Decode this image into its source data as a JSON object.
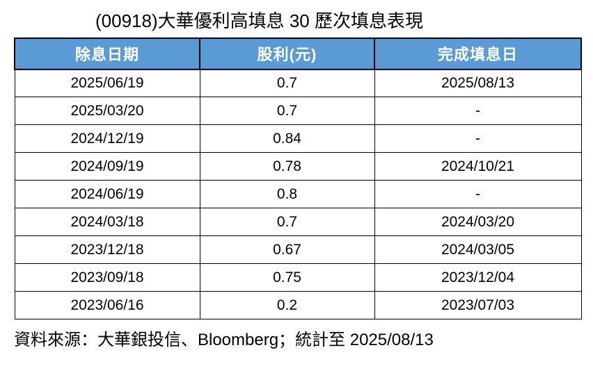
{
  "chart_data": {
    "type": "table",
    "title": "(00918)大華優利高填息 30 歷次填息表現",
    "columns": [
      "除息日期",
      "股利(元)",
      "完成填息日"
    ],
    "rows": [
      [
        "2025/06/19",
        "0.7",
        "2025/08/13"
      ],
      [
        "2025/03/20",
        "0.7",
        "-"
      ],
      [
        "2024/12/19",
        "0.84",
        "-"
      ],
      [
        "2024/09/19",
        "0.78",
        "2024/10/21"
      ],
      [
        "2024/06/19",
        "0.8",
        "-"
      ],
      [
        "2024/03/18",
        "0.7",
        "2024/03/20"
      ],
      [
        "2023/12/18",
        "0.67",
        "2024/03/05"
      ],
      [
        "2023/09/18",
        "0.75",
        "2023/12/04"
      ],
      [
        "2023/06/16",
        "0.2",
        "2023/07/03"
      ]
    ],
    "source_note": "資料來源：大華銀投信、Bloomberg；統計至 2025/08/13",
    "layout": "header row blue, grid on, all cells centered"
  },
  "colors": {
    "header_bg": "#5B9BD5",
    "header_text": "#FFFFFF",
    "border_color": "#000000",
    "text_color": "#000000",
    "page_bg": "#FFFFFF"
  }
}
